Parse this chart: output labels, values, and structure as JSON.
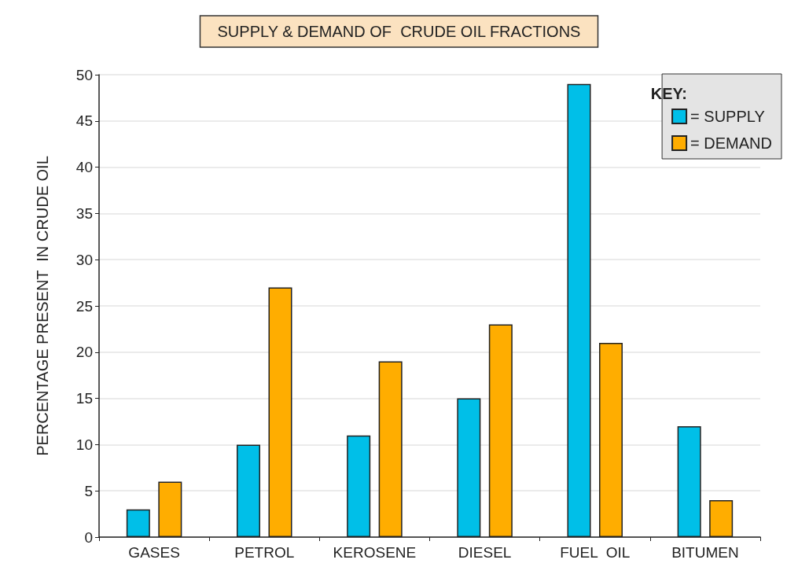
{
  "chart_data": {
    "type": "bar",
    "title": "SUPPLY & DEMAND OF  CRUDE OIL FRACTIONS",
    "ylabel": "PERCENTAGE PRESENT  IN CRUDE OIL",
    "legend_title": "KEY:",
    "categories": [
      "GASES",
      "PETROL",
      "KEROSENE",
      "DIESEL",
      "FUEL  OIL",
      "BITUMEN"
    ],
    "series": [
      {
        "name": "= SUPPLY",
        "color": "#00bfe8",
        "values": [
          3,
          10,
          11,
          15,
          49,
          12
        ]
      },
      {
        "name": "= DEMAND",
        "color": "#ffad00",
        "values": [
          6,
          27,
          19,
          23,
          21,
          4
        ]
      }
    ],
    "ylim": [
      0,
      50
    ],
    "yticks": [
      0,
      5,
      10,
      15,
      20,
      25,
      30,
      35,
      40,
      45,
      50
    ],
    "grid": "y",
    "legend": "top right"
  }
}
